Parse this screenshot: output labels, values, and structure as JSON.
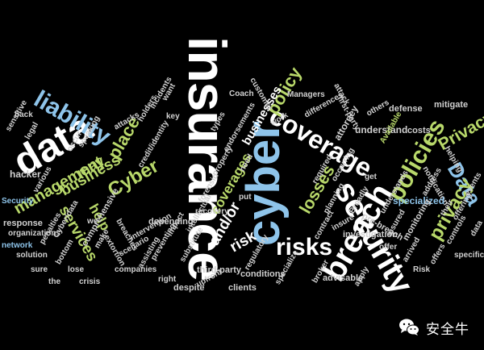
{
  "words": {
    "insurance": "insurance",
    "cyber_big": "cyber",
    "data_big": "data",
    "security": "security",
    "breach": "breach",
    "coverage": "coverage",
    "liability": "liability",
    "policies": "policies",
    "risks": "risks",
    "data_right": "Data",
    "privacy_lower": "privacy",
    "privacy_upper": "Privacy",
    "cyber_mid": "Cyber",
    "management": "management",
    "business": "business",
    "policy": "policy",
    "losses": "losses",
    "coverages": "coverages",
    "may": "may",
    "place": "place",
    "services": "services",
    "help": "help",
    "risk": "risk",
    "and_or": "and/or",
    "businesses": "businesses",
    "attorney": "attorney",
    "understand": "understand",
    "defense": "defense",
    "mitigate": "mitigate",
    "costs": "costs",
    "helping": "helping",
    "notification": "notification",
    "specialized": "specialized",
    "investigation": "investigation",
    "monitoring": "monitoring",
    "pre_breach": "pre-breach",
    "insure": "insure",
    "offer": "offer",
    "controls": "controls",
    "specific": "specific",
    "planning": "planning",
    "contract": "contract",
    "advisable": "advisable",
    "broker": "broker",
    "clients": "clients",
    "conditions": "conditions",
    "third_party": "third-party",
    "upfront": "upfront",
    "despite": "despite",
    "right": "right",
    "substitute": "substitute",
    "intellectual": "intellectual",
    "companies": "companies",
    "scenario": "scenario",
    "crisis": "crisis",
    "recovery": "recovery",
    "forensic": "forensic",
    "depending": "depending",
    "intervention": "intervention",
    "breaches": "breaches",
    "extortion": "extortion",
    "comprehensive": "comprehensive",
    "hacker": "hacker",
    "response": "response",
    "organizations": "organizations",
    "network": "network",
    "solution": "solution",
    "penalties": "penalties",
    "cyberdata": "Cyber/data",
    "various": "various",
    "security_small": "Security",
    "sensitive": "sensitive",
    "back": "back",
    "legal": "legal",
    "occur": "occur",
    "attacks": "attacks",
    "holders": "holders",
    "incidents": "incidents",
    "want": "want",
    "credit_identity": "credit/identity",
    "types": "types",
    "property": "property",
    "endorsements": "endorsements",
    "need": "need",
    "coach": "Coach",
    "customer": "customer",
    "work": "work",
    "managers": "Managers",
    "differences": "differences",
    "first_party": "first-party",
    "others": "others",
    "attack": "attack",
    "available": "Available",
    "regulatory": "regulatory",
    "specialize": "specialize",
    "apply": "apply",
    "occurring": "occurring",
    "required": "required",
    "broadly": "Broadly",
    "understands": "understands",
    "insured": "insured",
    "arrived": "arrived",
    "offers": "offers",
    "risk_small": "Risk",
    "their": "their",
    "offering": "offering",
    "events": "events",
    "data_small": "data",
    "address": "address",
    "speaking": "speaking",
    "we": "we",
    "make": "make",
    "assisting": "assisting",
    "preventing": "preventing",
    "impact": "impact",
    "the": "the",
    "bottom": "bottom",
    "put": "put",
    "get": "get",
    "sure": "sure",
    "lose": "lose",
    "key": "key"
  },
  "watermark": {
    "logo_icon": "wechat-icon",
    "text": "安全牛"
  }
}
